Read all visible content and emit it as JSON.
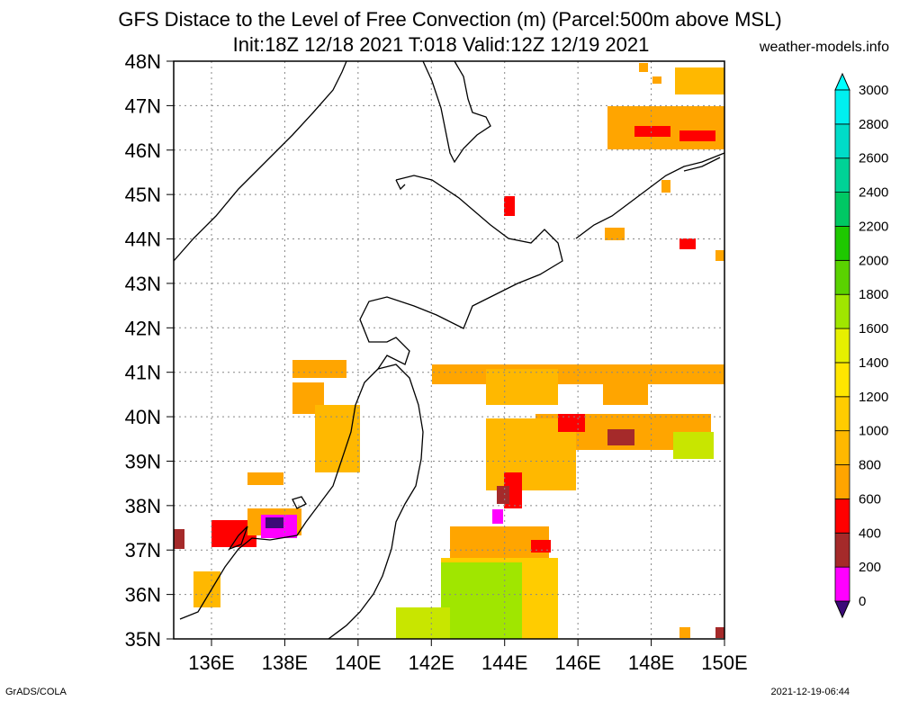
{
  "header": {
    "title_line1": "GFS Distace to the Level of Free Convection (m) (Parcel:500m above MSL)",
    "title_line2": "Init:18Z 12/18 2021 T:018 Valid:12Z 12/19 2021",
    "site": "weather-models.info"
  },
  "footer": {
    "left": "GrADS/COLA",
    "right": "2021-12-19-06:44"
  },
  "map": {
    "lat_labels": [
      "48N",
      "47N",
      "46N",
      "45N",
      "44N",
      "43N",
      "42N",
      "41N",
      "40N",
      "39N",
      "38N",
      "37N",
      "36N",
      "35N"
    ],
    "lon_labels": [
      "136E",
      "138E",
      "140E",
      "142E",
      "144E",
      "146E",
      "148E",
      "150E"
    ]
  },
  "legend": {
    "levels": [
      "0",
      "200",
      "400",
      "600",
      "800",
      "1000",
      "1200",
      "1400",
      "1600",
      "1800",
      "2000",
      "2200",
      "2400",
      "2600",
      "2800",
      "3000"
    ],
    "colors": [
      "#3c0a78",
      "#ff00ff",
      "#a52a2a",
      "#ff0000",
      "#ffa500",
      "#ffb800",
      "#ffcc00",
      "#ffe600",
      "#e6f000",
      "#a0e600",
      "#5ad200",
      "#1ec800",
      "#00c864",
      "#00d296",
      "#00dcc8",
      "#00f0f0",
      "#00ffff"
    ]
  }
}
